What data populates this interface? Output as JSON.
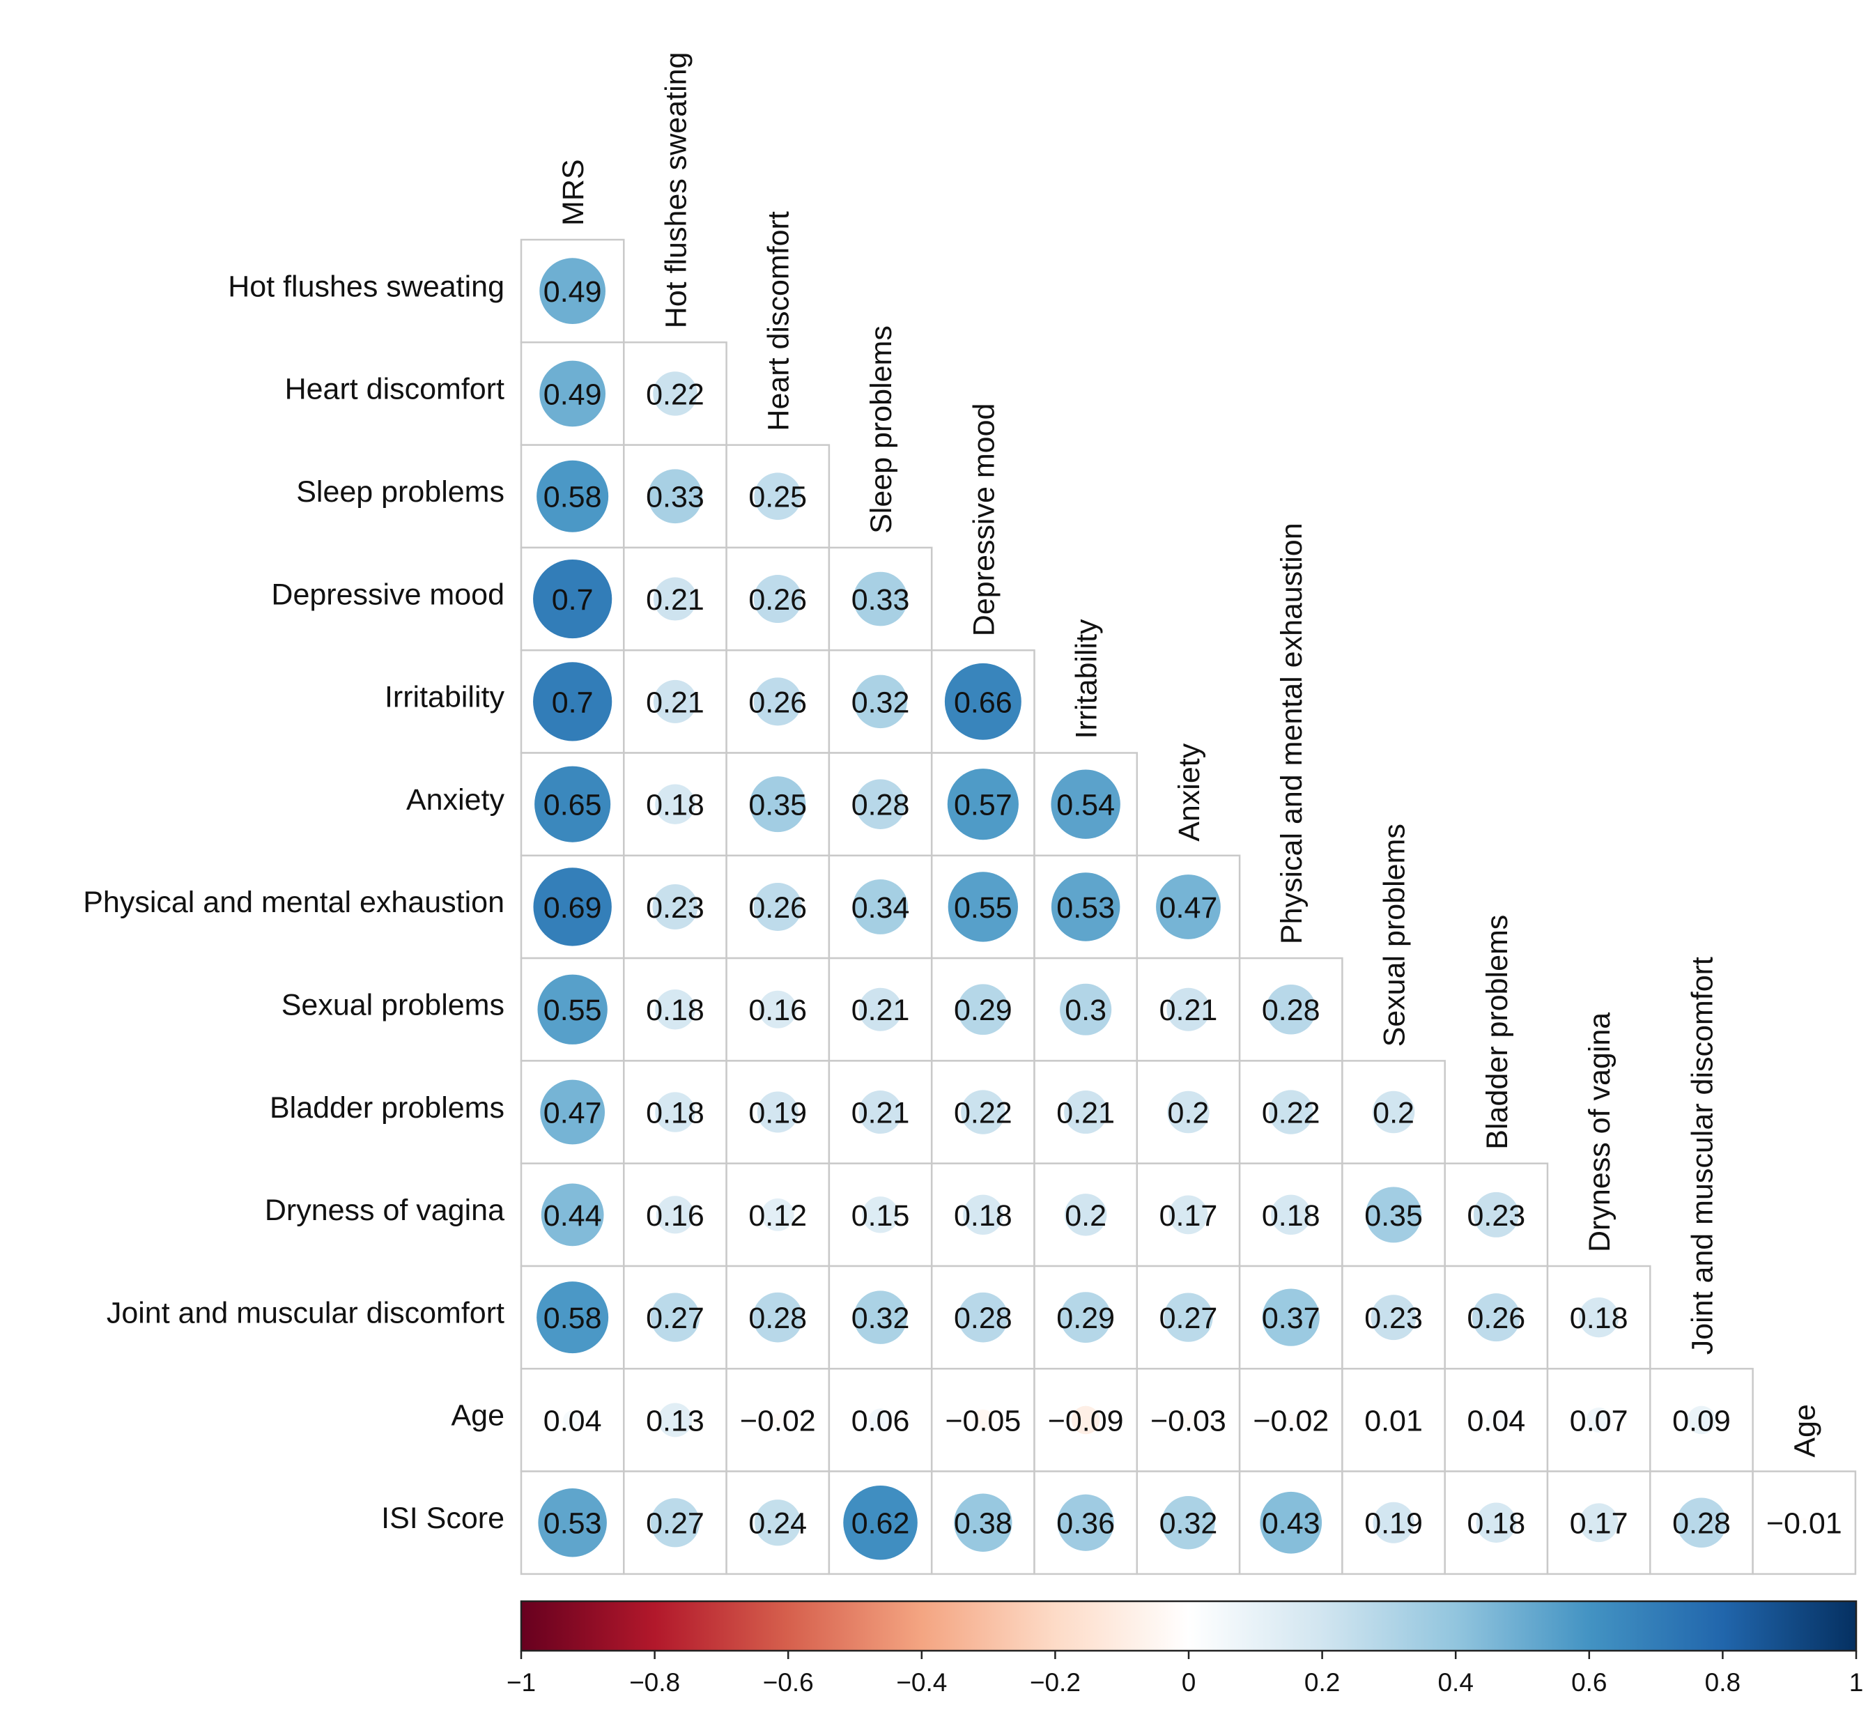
{
  "chart_data": {
    "type": "heatmap",
    "style": "lower-triangular correlation matrix with circles",
    "columns": [
      "MRS",
      "Hot flushes sweating",
      "Heart discomfort",
      "Sleep problems",
      "Depressive mood",
      "Irritability",
      "Anxiety",
      "Physical and mental exhaustion",
      "Sexual problems",
      "Bladder problems",
      "Dryness of vagina",
      "Joint and muscular discomfort",
      "Age"
    ],
    "rows": [
      "Hot flushes sweating",
      "Heart discomfort",
      "Sleep problems",
      "Depressive mood",
      "Irritability",
      "Anxiety",
      "Physical and mental exhaustion",
      "Sexual problems",
      "Bladder problems",
      "Dryness of vagina",
      "Joint and muscular discomfort",
      "Age",
      "ISI Score"
    ],
    "values": [
      [
        "0.49"
      ],
      [
        "0.49",
        "0.22"
      ],
      [
        "0.58",
        "0.33",
        "0.25"
      ],
      [
        "0.7",
        "0.21",
        "0.26",
        "0.33"
      ],
      [
        "0.7",
        "0.21",
        "0.26",
        "0.32",
        "0.66"
      ],
      [
        "0.65",
        "0.18",
        "0.35",
        "0.28",
        "0.57",
        "0.54"
      ],
      [
        "0.69",
        "0.23",
        "0.26",
        "0.34",
        "0.55",
        "0.53",
        "0.47"
      ],
      [
        "0.55",
        "0.18",
        "0.16",
        "0.21",
        "0.29",
        "0.3",
        "0.21",
        "0.28"
      ],
      [
        "0.47",
        "0.18",
        "0.19",
        "0.21",
        "0.22",
        "0.21",
        "0.2",
        "0.22",
        "0.2"
      ],
      [
        "0.44",
        "0.16",
        "0.12",
        "0.15",
        "0.18",
        "0.2",
        "0.17",
        "0.18",
        "0.35",
        "0.23"
      ],
      [
        "0.58",
        "0.27",
        "0.28",
        "0.32",
        "0.28",
        "0.29",
        "0.27",
        "0.37",
        "0.23",
        "0.26",
        "0.18"
      ],
      [
        "0.04",
        "0.13",
        "−0.02",
        "0.06",
        "−0.05",
        "−0.09",
        "−0.03",
        "−0.02",
        "0.01",
        "0.04",
        "0.07",
        "0.09"
      ],
      [
        "0.53",
        "0.27",
        "0.24",
        "0.62",
        "0.38",
        "0.36",
        "0.32",
        "0.43",
        "0.19",
        "0.18",
        "0.17",
        "0.28",
        "−0.01"
      ]
    ],
    "colorbar": {
      "range": [
        -1,
        1
      ],
      "ticks": [
        "−1",
        "−0.8",
        "−0.6",
        "−0.4",
        "−0.2",
        "0",
        "0.2",
        "0.4",
        "0.6",
        "0.8",
        "1"
      ],
      "colors": [
        "#67001f",
        "#b2182b",
        "#d6604d",
        "#f4a582",
        "#fddbc7",
        "#ffffff",
        "#d1e5f0",
        "#92c5de",
        "#4393c3",
        "#2166ac",
        "#053061"
      ]
    }
  }
}
